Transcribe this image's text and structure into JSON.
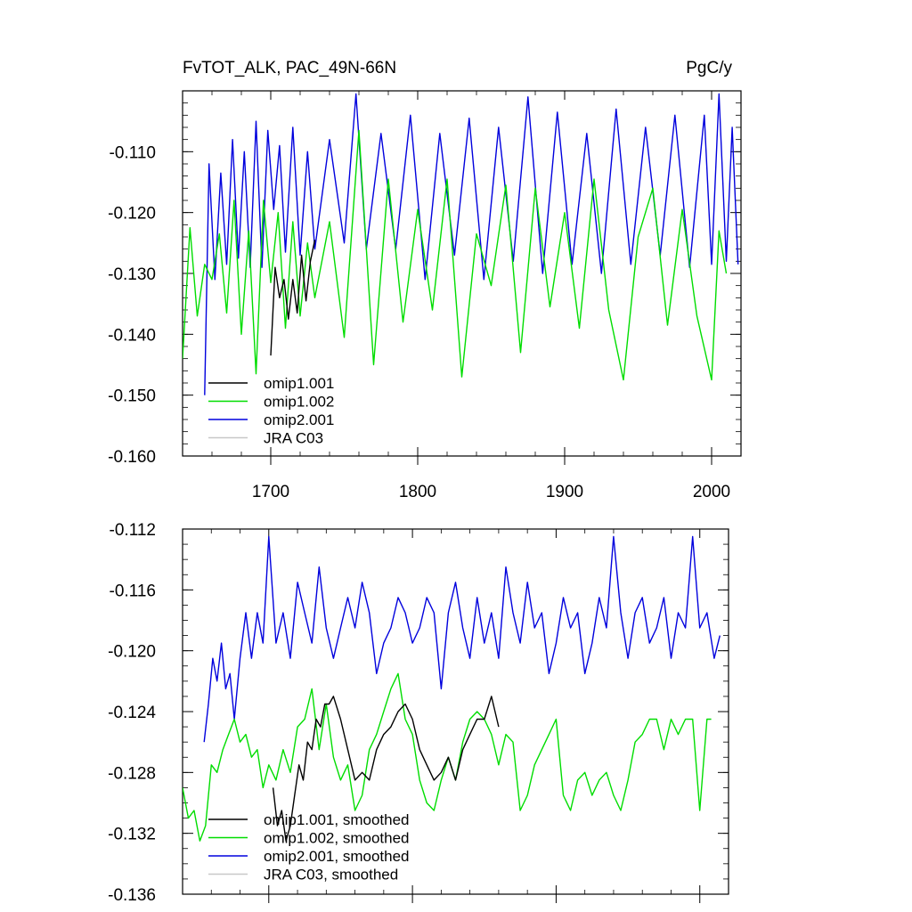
{
  "chart_data": [
    {
      "type": "line",
      "title_left": "FvTOT_ALK, PAC_49N-66N",
      "title_right": "PgC/y",
      "xlim": [
        1640,
        2020
      ],
      "ylim": [
        -0.16,
        -0.1
      ],
      "x_ticks": [
        1700,
        1800,
        1900,
        2000
      ],
      "x_tick_labels": [
        "1700",
        "1800",
        "1900",
        "2000"
      ],
      "y_ticks": [
        -0.11,
        -0.12,
        -0.13,
        -0.14,
        -0.15,
        -0.16
      ],
      "y_tick_labels": [
        "-0.110",
        "-0.120",
        "-0.130",
        "-0.140",
        "-0.150",
        "-0.160"
      ],
      "legend_position": "bottom-left",
      "series": [
        {
          "name": "omip1.001",
          "color": "#000000",
          "x": [
            1700,
            1703,
            1706,
            1709,
            1712,
            1715,
            1718,
            1721,
            1724,
            1727,
            1730
          ],
          "values": [
            -0.1435,
            -0.129,
            -0.134,
            -0.131,
            -0.1375,
            -0.131,
            -0.1365,
            -0.127,
            -0.1345,
            -0.128,
            -0.1245
          ]
        },
        {
          "name": "omip1.002",
          "color": "#00dd00",
          "x": [
            1640,
            1645,
            1650,
            1655,
            1660,
            1665,
            1670,
            1675,
            1680,
            1685,
            1690,
            1695,
            1700,
            1705,
            1710,
            1715,
            1720,
            1725,
            1730,
            1740,
            1750,
            1760,
            1770,
            1780,
            1790,
            1800,
            1810,
            1820,
            1830,
            1840,
            1850,
            1860,
            1870,
            1880,
            1890,
            1900,
            1910,
            1920,
            1930,
            1940,
            1950,
            1960,
            1970,
            1980,
            1990,
            2000,
            2005,
            2010
          ],
          "values": [
            -0.144,
            -0.1225,
            -0.137,
            -0.1285,
            -0.131,
            -0.1235,
            -0.1365,
            -0.118,
            -0.14,
            -0.123,
            -0.1465,
            -0.118,
            -0.1315,
            -0.12,
            -0.139,
            -0.1215,
            -0.137,
            -0.125,
            -0.134,
            -0.1215,
            -0.1405,
            -0.1065,
            -0.145,
            -0.1145,
            -0.138,
            -0.1195,
            -0.136,
            -0.1145,
            -0.147,
            -0.1235,
            -0.132,
            -0.1155,
            -0.143,
            -0.116,
            -0.1355,
            -0.12,
            -0.139,
            -0.1145,
            -0.136,
            -0.1475,
            -0.124,
            -0.116,
            -0.1385,
            -0.1195,
            -0.137,
            -0.1475,
            -0.123,
            -0.13
          ]
        },
        {
          "name": "omip2.001",
          "color": "#0000dd",
          "x": [
            1655,
            1658,
            1662,
            1666,
            1670,
            1674,
            1678,
            1682,
            1686,
            1690,
            1694,
            1698,
            1702,
            1706,
            1710,
            1715,
            1720,
            1725,
            1730,
            1740,
            1750,
            1758,
            1765,
            1775,
            1785,
            1795,
            1805,
            1815,
            1825,
            1835,
            1845,
            1855,
            1865,
            1875,
            1885,
            1895,
            1905,
            1915,
            1925,
            1935,
            1945,
            1955,
            1965,
            1975,
            1985,
            1995,
            2000,
            2005,
            2010,
            2014,
            2018
          ],
          "values": [
            -0.15,
            -0.112,
            -0.131,
            -0.1135,
            -0.1285,
            -0.108,
            -0.1275,
            -0.11,
            -0.129,
            -0.105,
            -0.129,
            -0.1065,
            -0.1195,
            -0.109,
            -0.1265,
            -0.106,
            -0.127,
            -0.11,
            -0.126,
            -0.108,
            -0.125,
            -0.1005,
            -0.126,
            -0.107,
            -0.126,
            -0.104,
            -0.131,
            -0.107,
            -0.127,
            -0.1045,
            -0.131,
            -0.106,
            -0.128,
            -0.101,
            -0.13,
            -0.1035,
            -0.1285,
            -0.107,
            -0.13,
            -0.103,
            -0.1285,
            -0.106,
            -0.127,
            -0.104,
            -0.129,
            -0.104,
            -0.1285,
            -0.1005,
            -0.128,
            -0.106,
            -0.1285
          ]
        },
        {
          "name": "JRA C03",
          "color": "#c8c8c8",
          "x": [],
          "values": []
        }
      ]
    },
    {
      "type": "line",
      "title_left": "",
      "title_right": "",
      "xlim": [
        1640,
        2020
      ],
      "ylim": [
        -0.136,
        -0.112
      ],
      "x_ticks": [
        1700,
        1800,
        1900,
        2000
      ],
      "x_tick_labels": [
        "",
        "",
        "",
        ""
      ],
      "y_ticks": [
        -0.112,
        -0.116,
        -0.12,
        -0.124,
        -0.128,
        -0.132,
        -0.136
      ],
      "y_tick_labels": [
        "-0.112",
        "-0.116",
        "-0.120",
        "-0.124",
        "-0.128",
        "-0.132",
        "-0.136"
      ],
      "legend_position": "bottom-left",
      "series": [
        {
          "name": "omip1.001, smoothed",
          "color": "#000000",
          "x": [
            1703,
            1706,
            1709,
            1712,
            1715,
            1718,
            1721,
            1724,
            1727,
            1730,
            1733,
            1736,
            1739,
            1742,
            1745,
            1750,
            1755,
            1760,
            1765,
            1770,
            1775,
            1780,
            1785,
            1790,
            1795,
            1800,
            1805,
            1810,
            1815,
            1820,
            1825,
            1830,
            1835,
            1840,
            1845,
            1850,
            1855,
            1860
          ],
          "values": [
            -0.129,
            -0.1315,
            -0.1305,
            -0.1325,
            -0.1315,
            -0.1295,
            -0.1275,
            -0.1285,
            -0.126,
            -0.1265,
            -0.1245,
            -0.125,
            -0.1235,
            -0.1235,
            -0.123,
            -0.1245,
            -0.1265,
            -0.1285,
            -0.128,
            -0.1285,
            -0.1265,
            -0.1255,
            -0.125,
            -0.124,
            -0.1235,
            -0.1245,
            -0.1265,
            -0.1275,
            -0.1285,
            -0.128,
            -0.127,
            -0.1285,
            -0.1265,
            -0.1255,
            -0.1245,
            -0.1245,
            -0.123,
            -0.125
          ]
        },
        {
          "name": "omip1.002, smoothed",
          "color": "#00dd00",
          "x": [
            1640,
            1644,
            1648,
            1652,
            1656,
            1660,
            1664,
            1668,
            1672,
            1676,
            1680,
            1684,
            1688,
            1692,
            1696,
            1700,
            1705,
            1710,
            1715,
            1720,
            1725,
            1730,
            1735,
            1740,
            1745,
            1750,
            1755,
            1760,
            1765,
            1770,
            1775,
            1780,
            1785,
            1790,
            1795,
            1800,
            1805,
            1810,
            1815,
            1820,
            1825,
            1830,
            1835,
            1840,
            1845,
            1850,
            1855,
            1860,
            1865,
            1870,
            1875,
            1880,
            1885,
            1890,
            1895,
            1900,
            1905,
            1910,
            1915,
            1920,
            1925,
            1930,
            1935,
            1940,
            1945,
            1950,
            1955,
            1960,
            1965,
            1970,
            1975,
            1980,
            1985,
            1990,
            1995,
            2000,
            2005,
            2008
          ],
          "values": [
            -0.129,
            -0.131,
            -0.1305,
            -0.1325,
            -0.1315,
            -0.1275,
            -0.128,
            -0.1265,
            -0.1255,
            -0.1245,
            -0.126,
            -0.1255,
            -0.127,
            -0.1265,
            -0.129,
            -0.1275,
            -0.1285,
            -0.1265,
            -0.128,
            -0.125,
            -0.1245,
            -0.1225,
            -0.1265,
            -0.1235,
            -0.127,
            -0.1285,
            -0.1275,
            -0.1305,
            -0.1295,
            -0.1265,
            -0.1255,
            -0.124,
            -0.1225,
            -0.1215,
            -0.1245,
            -0.1255,
            -0.1285,
            -0.13,
            -0.1305,
            -0.1285,
            -0.127,
            -0.1285,
            -0.126,
            -0.1245,
            -0.124,
            -0.1245,
            -0.1255,
            -0.1275,
            -0.1255,
            -0.126,
            -0.1305,
            -0.1295,
            -0.1275,
            -0.1265,
            -0.1255,
            -0.1245,
            -0.1295,
            -0.1305,
            -0.1285,
            -0.128,
            -0.1295,
            -0.1285,
            -0.128,
            -0.1295,
            -0.1305,
            -0.1285,
            -0.126,
            -0.1255,
            -0.1245,
            -0.1245,
            -0.1265,
            -0.1245,
            -0.1255,
            -0.1245,
            -0.1245,
            -0.1305,
            -0.1245,
            -0.1245
          ]
        },
        {
          "name": "omip2.001, smoothed",
          "color": "#0000dd",
          "x": [
            1655,
            1658,
            1661,
            1664,
            1667,
            1670,
            1673,
            1676,
            1680,
            1684,
            1688,
            1692,
            1696,
            1700,
            1705,
            1710,
            1715,
            1720,
            1725,
            1730,
            1735,
            1740,
            1745,
            1750,
            1755,
            1760,
            1765,
            1770,
            1775,
            1780,
            1785,
            1790,
            1795,
            1800,
            1805,
            1810,
            1815,
            1820,
            1825,
            1830,
            1835,
            1840,
            1845,
            1850,
            1855,
            1860,
            1865,
            1870,
            1875,
            1880,
            1885,
            1890,
            1895,
            1900,
            1905,
            1910,
            1915,
            1920,
            1925,
            1930,
            1935,
            1940,
            1945,
            1950,
            1955,
            1960,
            1965,
            1970,
            1975,
            1980,
            1985,
            1990,
            1995,
            2000,
            2005,
            2010,
            2014
          ],
          "values": [
            -0.126,
            -0.1235,
            -0.1205,
            -0.122,
            -0.1195,
            -0.1225,
            -0.1215,
            -0.1245,
            -0.1205,
            -0.1175,
            -0.1205,
            -0.1175,
            -0.1195,
            -0.1125,
            -0.1195,
            -0.1175,
            -0.1205,
            -0.1155,
            -0.1175,
            -0.1195,
            -0.1145,
            -0.1185,
            -0.1205,
            -0.1185,
            -0.1165,
            -0.1185,
            -0.1155,
            -0.1175,
            -0.1215,
            -0.1195,
            -0.1185,
            -0.1165,
            -0.1175,
            -0.1195,
            -0.1185,
            -0.1165,
            -0.1175,
            -0.1225,
            -0.1175,
            -0.1155,
            -0.1185,
            -0.1205,
            -0.1165,
            -0.1195,
            -0.1175,
            -0.1205,
            -0.1145,
            -0.1175,
            -0.1195,
            -0.1155,
            -0.1185,
            -0.1175,
            -0.1215,
            -0.1195,
            -0.1165,
            -0.1185,
            -0.1175,
            -0.1215,
            -0.1195,
            -0.1165,
            -0.1185,
            -0.1125,
            -0.1175,
            -0.1205,
            -0.1175,
            -0.1165,
            -0.1195,
            -0.1185,
            -0.1165,
            -0.1205,
            -0.1175,
            -0.1185,
            -0.1125,
            -0.1185,
            -0.1175,
            -0.1205,
            -0.119
          ]
        },
        {
          "name": "JRA C03, smoothed",
          "color": "#c8c8c8",
          "x": [],
          "values": []
        }
      ]
    }
  ]
}
